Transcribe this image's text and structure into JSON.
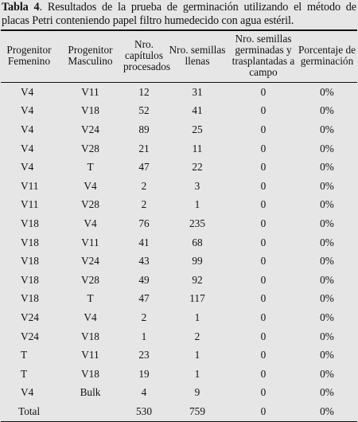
{
  "caption": {
    "label": "Tabla 4",
    "text": ". Resultados de la prueba de germinación utilizando el método de placas Petri conteniendo papel filtro humedecido con agua estéril."
  },
  "columns": [
    "Progenitor Femenino",
    "Progenitor Masculino",
    "Nro. capítulos procesados",
    "Nro. semillas llenas",
    "Nro. semillas germinadas y trasplantadas a campo",
    "Porcentaje de germinación"
  ],
  "rows": [
    [
      "V4",
      "V11",
      "12",
      "31",
      "0",
      "0%"
    ],
    [
      "V4",
      "V18",
      "52",
      "41",
      "0",
      "0%"
    ],
    [
      "V4",
      "V24",
      "89",
      "25",
      "0",
      "0%"
    ],
    [
      "V4",
      "V28",
      "21",
      "11",
      "0",
      "0%"
    ],
    [
      "V4",
      "T",
      "47",
      "22",
      "0",
      "0%"
    ],
    [
      "V11",
      "V4",
      "2",
      "3",
      "0",
      "0%"
    ],
    [
      "V11",
      "V28",
      "2",
      "1",
      "0",
      "0%"
    ],
    [
      "V18",
      "V4",
      "76",
      "235",
      "0",
      "0%"
    ],
    [
      "V18",
      "V11",
      "41",
      "68",
      "0",
      "0%"
    ],
    [
      "V18",
      "V24",
      "43",
      "99",
      "0",
      "0%"
    ],
    [
      "V18",
      "V28",
      "49",
      "92",
      "0",
      "0%"
    ],
    [
      "V18",
      "T",
      "47",
      "117",
      "0",
      "0%"
    ],
    [
      "V24",
      "V4",
      "2",
      "1",
      "0",
      "0%"
    ],
    [
      "V24",
      "V18",
      "1",
      "2",
      "0",
      "0%"
    ],
    [
      "T",
      "V11",
      "23",
      "1",
      "0",
      "0%"
    ],
    [
      "T",
      "V18",
      "19",
      "1",
      "0",
      "0%"
    ],
    [
      "V4",
      "Bulk",
      "4",
      "9",
      "0",
      "0%"
    ]
  ],
  "total": [
    "Total",
    "",
    "530",
    "759",
    "0",
    "0%"
  ]
}
